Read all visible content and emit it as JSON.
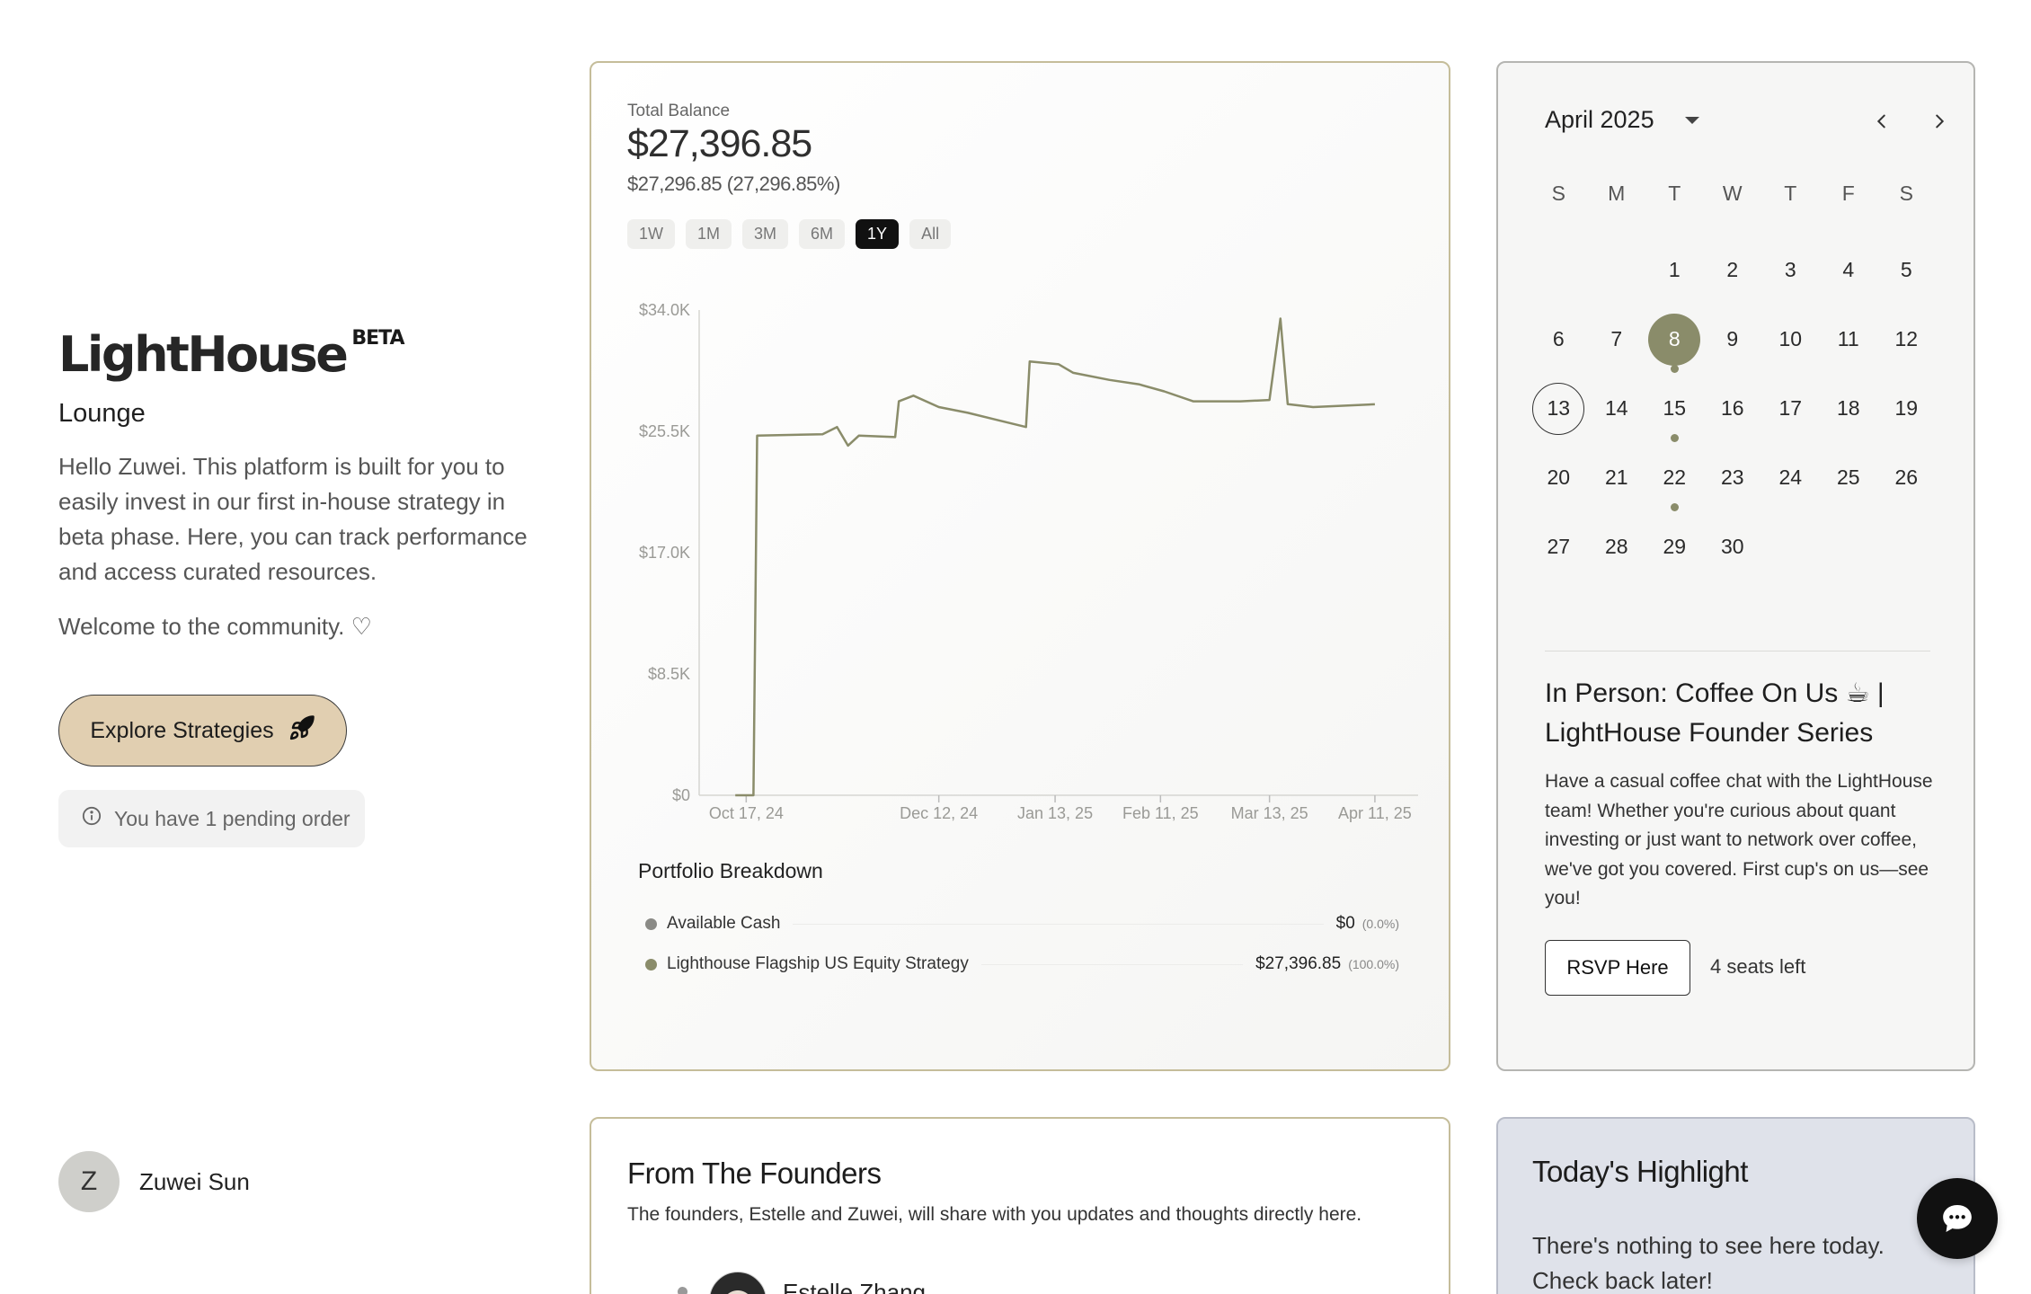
{
  "brand": {
    "name": "LightHouse",
    "badge": "BETA",
    "subtitle": "Lounge"
  },
  "intro": {
    "text": "Hello Zuwei. This platform is built for you to easily invest in our first in-house strategy in beta phase. Here, you can track performance and access curated resources.",
    "welcome": "Welcome to the community. ♡"
  },
  "actions": {
    "explore_label": "Explore Strategies",
    "pending_text": "You have 1 pending order"
  },
  "user": {
    "initial": "Z",
    "name": "Zuwei Sun"
  },
  "balance": {
    "label": "Total Balance",
    "value": "$27,396.85",
    "change": "$27,296.85 (27,296.85%)",
    "ranges": [
      "1W",
      "1M",
      "3M",
      "6M",
      "1Y",
      "All"
    ],
    "active_range": "1Y"
  },
  "chart_data": {
    "type": "line",
    "title": "",
    "xlabel": "",
    "ylabel": "",
    "ylim": [
      0,
      34000
    ],
    "y_ticks": [
      "$0",
      "$8.5K",
      "$17.0K",
      "$25.5K",
      "$34.0K"
    ],
    "x_ticks": [
      "Oct 17, 24",
      "Dec 12, 24",
      "Jan 13, 25",
      "Feb 11, 25",
      "Mar 13, 25",
      "Apr 11, 25"
    ],
    "line_color": "#8a8c6a",
    "grid": false,
    "series": [
      {
        "values": [
          [
            "2024-10-17",
            0
          ],
          [
            "2024-10-22",
            0
          ],
          [
            "2024-10-23",
            25200
          ],
          [
            "2024-11-10",
            25300
          ],
          [
            "2024-11-14",
            25800
          ],
          [
            "2024-11-17",
            24500
          ],
          [
            "2024-11-20",
            25200
          ],
          [
            "2024-11-30",
            25100
          ],
          [
            "2024-12-01",
            27600
          ],
          [
            "2024-12-05",
            28000
          ],
          [
            "2024-12-12",
            27200
          ],
          [
            "2024-12-20",
            26800
          ],
          [
            "2024-12-28",
            26300
          ],
          [
            "2025-01-05",
            25800
          ],
          [
            "2025-01-06",
            30400
          ],
          [
            "2025-01-14",
            30200
          ],
          [
            "2025-01-18",
            29600
          ],
          [
            "2025-01-28",
            29100
          ],
          [
            "2025-02-05",
            28800
          ],
          [
            "2025-02-12",
            28300
          ],
          [
            "2025-02-20",
            27600
          ],
          [
            "2025-03-05",
            27600
          ],
          [
            "2025-03-13",
            27700
          ],
          [
            "2025-03-16",
            33400
          ],
          [
            "2025-03-18",
            27400
          ],
          [
            "2025-03-25",
            27200
          ],
          [
            "2025-04-11",
            27397
          ]
        ]
      }
    ]
  },
  "portfolio": {
    "title": "Portfolio Breakdown",
    "items": [
      {
        "name": "Available Cash",
        "amount": "$0",
        "percent": "(0.0%)",
        "color": "#8a8a86"
      },
      {
        "name": "Lighthouse Flagship US Equity Strategy",
        "amount": "$27,396.85",
        "percent": "(100.0%)",
        "color": "#8a8c6a"
      }
    ]
  },
  "calendar": {
    "month_label": "April 2025",
    "weekdays": [
      "S",
      "M",
      "T",
      "W",
      "T",
      "F",
      "S"
    ],
    "start_offset": 2,
    "days_in_month": 30,
    "today": 8,
    "selected": 13,
    "event_days": [
      8,
      15,
      22
    ]
  },
  "event": {
    "title": "In Person: Coffee On Us ☕ | LightHouse Founder Series",
    "description": "Have a casual coffee chat with the LightHouse team! Whether you're curious about quant investing or just want to network over coffee, we've got you covered. First cup's on us—see you!",
    "rsvp_label": "RSVP Here",
    "seats": "4 seats left"
  },
  "founders": {
    "title": "From The Founders",
    "subtitle": "The founders, Estelle and Zuwei, will share with you updates and thoughts directly here.",
    "first_name": "Estelle Zhang"
  },
  "highlight": {
    "title": "Today's Highlight",
    "text": "There's nothing to see here today. Check back later!"
  },
  "icons": {
    "rocket": "rocket-icon",
    "info": "info-icon",
    "chat": "chat-icon",
    "prev": "chevron-left-icon",
    "next": "chevron-right-icon",
    "dropdown": "caret-down-icon"
  }
}
